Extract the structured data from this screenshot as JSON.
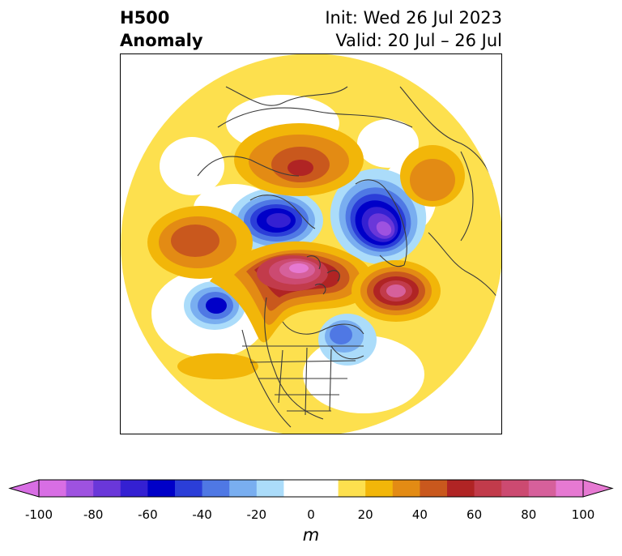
{
  "title": {
    "left_line1": "H500",
    "left_line2": "Anomaly",
    "right_line1": "Init: Wed 26 Jul 2023",
    "right_line2": "Valid: 20 Jul – 26 Jul"
  },
  "colorbar": {
    "units": "m",
    "ticks": [
      "-100",
      "-80",
      "-60",
      "-40",
      "-20",
      "0",
      "20",
      "40",
      "60",
      "80",
      "100"
    ],
    "levels": [
      -100,
      -90,
      -80,
      -70,
      -60,
      -50,
      -40,
      -30,
      -20,
      -10,
      10,
      20,
      30,
      40,
      50,
      60,
      70,
      80,
      90,
      100
    ],
    "colors": [
      "#d86ee4",
      "#9e52e0",
      "#6a37d9",
      "#3420d2",
      "#0000c8",
      "#2b3ed8",
      "#4f78e4",
      "#79aef0",
      "#abdcfa",
      "#ffffff",
      "#fde04e",
      "#f2b609",
      "#e38b14",
      "#c9581d",
      "#b02424",
      "#c23b4b",
      "#cc4a71",
      "#d6609b",
      "#e679d2"
    ],
    "under_color": "#d86ee4",
    "over_color": "#e679d2",
    "extend": "both"
  },
  "map": {
    "projection": "north-polar-stereographic",
    "field": "500 hPa geopotential height anomaly"
  }
}
